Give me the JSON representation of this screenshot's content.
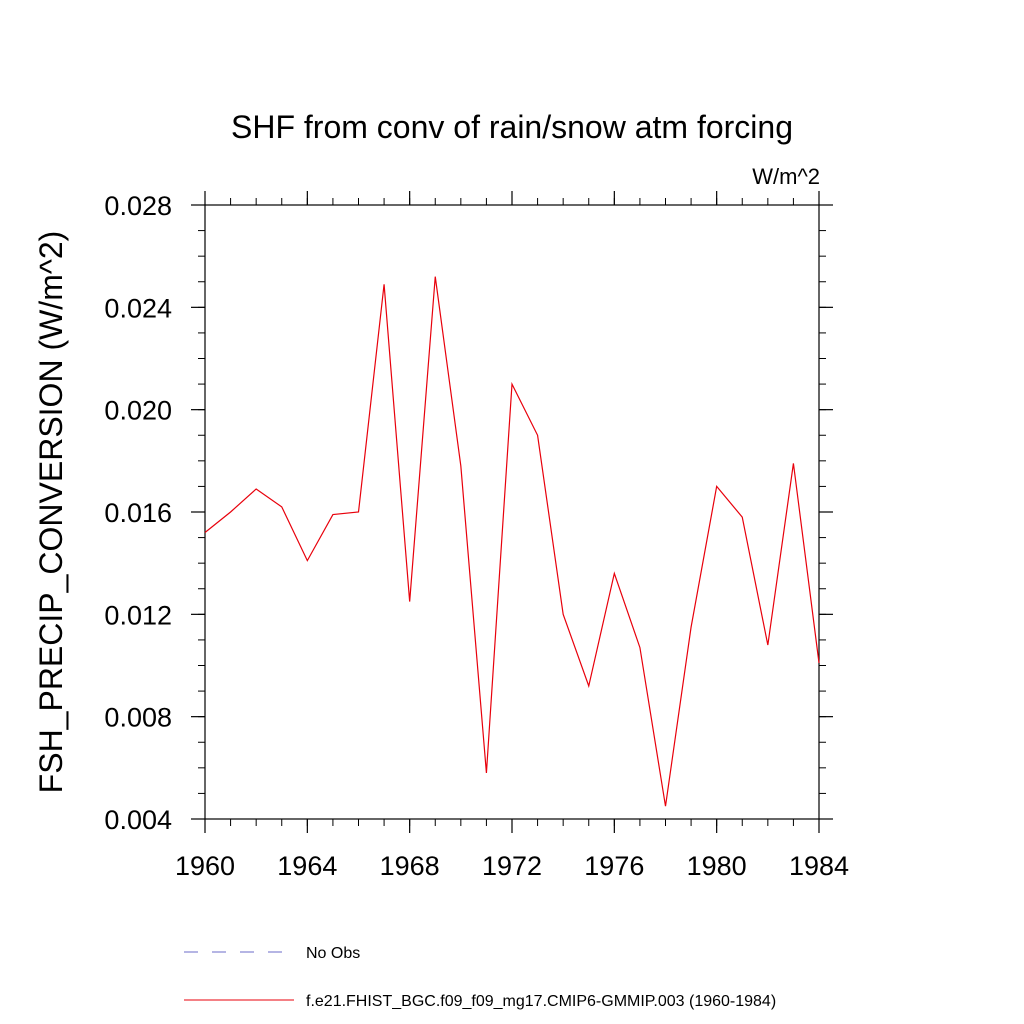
{
  "chart_data": {
    "type": "line",
    "title": "SHF from conv of rain/snow atm forcing",
    "units": "W/m^2",
    "xlabel": "",
    "ylabel": "FSH_PRECIP_CONVERSION  (W/m^2)",
    "xlim": [
      1960,
      1984
    ],
    "ylim": [
      0.004,
      0.028
    ],
    "x_ticks": [
      1960,
      1964,
      1968,
      1972,
      1976,
      1980,
      1984
    ],
    "x_tick_labels": [
      "1960",
      "1964",
      "1968",
      "1972",
      "1976",
      "1980",
      "1984"
    ],
    "y_ticks": [
      0.004,
      0.008,
      0.012,
      0.016,
      0.02,
      0.024,
      0.028
    ],
    "y_tick_labels": [
      "0.004",
      "0.008",
      "0.012",
      "0.016",
      "0.020",
      "0.024",
      "0.028"
    ],
    "grid": false,
    "legend_position": "bottom",
    "x": [
      1960,
      1961,
      1962,
      1963,
      1964,
      1965,
      1966,
      1967,
      1968,
      1969,
      1970,
      1971,
      1972,
      1973,
      1974,
      1975,
      1976,
      1977,
      1978,
      1979,
      1980,
      1981,
      1982,
      1983,
      1984
    ],
    "series": [
      {
        "name": "f.e21.FHIST_BGC.f09_f09_mg17.CMIP6-GMMIP.003 (1960-1984)",
        "color": "#e8000b",
        "style": "solid",
        "values": [
          0.0152,
          0.016,
          0.0169,
          0.0162,
          0.0141,
          0.0159,
          0.016,
          0.0249,
          0.0125,
          0.0252,
          0.0178,
          0.0058,
          0.021,
          0.019,
          0.012,
          0.0092,
          0.0136,
          0.0107,
          0.0045,
          0.0115,
          0.017,
          0.0158,
          0.0108,
          0.0179,
          0.0101
        ]
      }
    ],
    "legend": [
      {
        "label": "No Obs",
        "color": "#6b6bc8",
        "style": "dashed"
      },
      {
        "label": "f.e21.FHIST_BGC.f09_f09_mg17.CMIP6-GMMIP.003 (1960-1984)",
        "color": "#e8000b",
        "style": "solid"
      }
    ]
  }
}
